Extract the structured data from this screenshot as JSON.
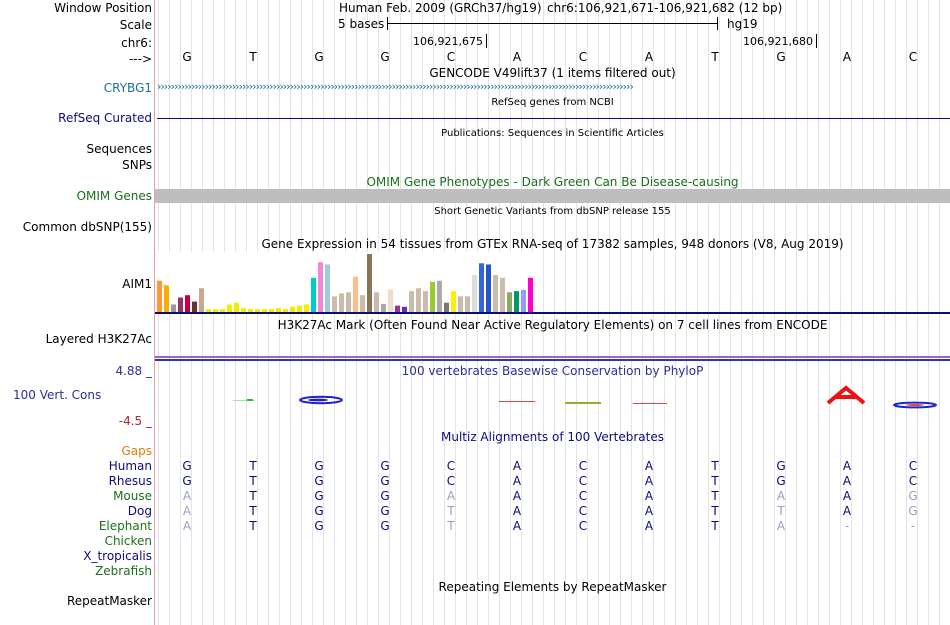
{
  "header": {
    "labels": {
      "window_position": "Window Position",
      "scale": "Scale",
      "chrom": "chr6:",
      "arrow": "--->"
    },
    "assembly": "Human Feb. 2009 (GRCh37/hg19)",
    "position": "chr6:106,921,671-106,921,682 (12 bp)",
    "scale_text": "5 bases",
    "scale_db": "hg19",
    "coord1": "106,921,675",
    "coord2": "106,921,680"
  },
  "bases": [
    "G",
    "T",
    "G",
    "G",
    "C",
    "A",
    "C",
    "A",
    "T",
    "G",
    "A",
    "C"
  ],
  "tracks": {
    "gencode": {
      "title": "GENCODE V49lift37 (1 items filtered out)",
      "label": "CRYBG1"
    },
    "refseq": {
      "title": "RefSeq genes from NCBI",
      "label": "RefSeq Curated"
    },
    "publications": {
      "title": "Publications: Sequences in Scientific Articles",
      "label1": "Sequences",
      "label2": "SNPs"
    },
    "omim": {
      "title": "OMIM Gene Phenotypes - Dark Green Can Be Disease-causing",
      "label": "OMIM Genes"
    },
    "dbsnp": {
      "title": "Short Genetic Variants from dbSNP release 155",
      "label": "Common dbSNP(155)"
    },
    "gtex": {
      "title": "Gene Expression in 54 tissues from GTEx RNA-seq of 17382 samples, 948 donors (V8, Aug 2019)",
      "label": "AIM1",
      "bars": [
        {
          "v": 0.54,
          "color": "#ff9933"
        },
        {
          "v": 0.46,
          "color": "#ffaa00"
        },
        {
          "v": 0.13,
          "color": "#999999"
        },
        {
          "v": 0.25,
          "color": "#993366"
        },
        {
          "v": 0.29,
          "color": "#cc0033"
        },
        {
          "v": 0.18,
          "color": "#663333"
        },
        {
          "v": 0.41,
          "color": "#c8a890"
        },
        {
          "v": 0.05,
          "color": "#eeee00"
        },
        {
          "v": 0.05,
          "color": "#eeee00"
        },
        {
          "v": 0.05,
          "color": "#eeee00"
        },
        {
          "v": 0.13,
          "color": "#eeee00"
        },
        {
          "v": 0.16,
          "color": "#eeee00"
        },
        {
          "v": 0.07,
          "color": "#eeee00"
        },
        {
          "v": 0.05,
          "color": "#eeee00"
        },
        {
          "v": 0.05,
          "color": "#eeee00"
        },
        {
          "v": 0.05,
          "color": "#eeee00"
        },
        {
          "v": 0.05,
          "color": "#eeee00"
        },
        {
          "v": 0.07,
          "color": "#eeee00"
        },
        {
          "v": 0.05,
          "color": "#eeee00"
        },
        {
          "v": 0.09,
          "color": "#eeee00"
        },
        {
          "v": 0.11,
          "color": "#eeee00"
        },
        {
          "v": 0.13,
          "color": "#eeee00"
        },
        {
          "v": 0.59,
          "color": "#00cccc"
        },
        {
          "v": 0.86,
          "color": "#ee88dd"
        },
        {
          "v": 0.82,
          "color": "#99ccdd"
        },
        {
          "v": 0.27,
          "color": "#ccbbaa"
        },
        {
          "v": 0.32,
          "color": "#ccbbaa"
        },
        {
          "v": 0.34,
          "color": "#ccbbaa"
        },
        {
          "v": 0.61,
          "color": "#ffbb88"
        },
        {
          "v": 0.29,
          "color": "#ccbbaa"
        },
        {
          "v": 1.0,
          "color": "#8b7355"
        },
        {
          "v": 0.34,
          "color": "#ccbbaa"
        },
        {
          "v": 0.14,
          "color": "#aaaaaa"
        },
        {
          "v": 0.39,
          "color": "#eeddcc"
        },
        {
          "v": 0.11,
          "color": "#993399"
        },
        {
          "v": 0.09,
          "color": "#6633aa"
        },
        {
          "v": 0.36,
          "color": "#ccbbaa"
        },
        {
          "v": 0.41,
          "color": "#ccbbaa"
        },
        {
          "v": 0.36,
          "color": "#ccbbaa"
        },
        {
          "v": 0.52,
          "color": "#99cc33"
        },
        {
          "v": 0.54,
          "color": "#aaaaaa"
        },
        {
          "v": 0.16,
          "color": "#777777"
        },
        {
          "v": 0.36,
          "color": "#ffee00"
        },
        {
          "v": 0.27,
          "color": "#ccbbaa"
        },
        {
          "v": 0.27,
          "color": "#ccbbaa"
        },
        {
          "v": 0.64,
          "color": "#dddddd"
        },
        {
          "v": 0.84,
          "color": "#3366dd"
        },
        {
          "v": 0.82,
          "color": "#2255cc"
        },
        {
          "v": 0.64,
          "color": "#ccbbaa"
        },
        {
          "v": 0.59,
          "color": "#ccbbaa"
        },
        {
          "v": 0.34,
          "color": "#88aa66"
        },
        {
          "v": 0.36,
          "color": "#009966"
        },
        {
          "v": 0.38,
          "color": "#9999ff"
        },
        {
          "v": 0.59,
          "color": "#ff00cc"
        }
      ]
    },
    "h3k27ac": {
      "title": "H3K27Ac Mark (Often Found Near Active Regulatory Elements) on 7 cell lines from ENCODE",
      "label": "Layered H3K27Ac"
    },
    "phylop": {
      "title": "100 vertebrates Basewise Conservation by PhyloP",
      "label": "100 Vert. Cons",
      "max": "4.88 _",
      "min": "-4.5 _"
    },
    "multiz": {
      "title": "Multiz Alignments of 100 Vertebrates",
      "gaps_label": "Gaps",
      "species": [
        {
          "name": "Human",
          "seq": [
            "G",
            "T",
            "G",
            "G",
            "C",
            "A",
            "C",
            "A",
            "T",
            "G",
            "A",
            "C"
          ],
          "dim": [
            0,
            0,
            0,
            0,
            0,
            0,
            0,
            0,
            0,
            0,
            0,
            0
          ]
        },
        {
          "name": "Rhesus",
          "seq": [
            "G",
            "T",
            "G",
            "G",
            "C",
            "A",
            "C",
            "A",
            "T",
            "G",
            "A",
            "C"
          ],
          "dim": [
            0,
            0,
            0,
            0,
            0,
            0,
            0,
            0,
            0,
            0,
            0,
            0
          ]
        },
        {
          "name": "Mouse",
          "seq": [
            "A",
            "T",
            "G",
            "G",
            "A",
            "A",
            "C",
            "A",
            "T",
            "A",
            "A",
            "G"
          ],
          "dim": [
            1,
            0,
            0,
            0,
            1,
            0,
            0,
            0,
            0,
            1,
            0,
            1
          ]
        },
        {
          "name": "Dog",
          "seq": [
            "A",
            "T",
            "G",
            "G",
            "T",
            "A",
            "C",
            "A",
            "T",
            "T",
            "A",
            "G"
          ],
          "dim": [
            1,
            0,
            0,
            0,
            1,
            0,
            0,
            0,
            0,
            1,
            0,
            1
          ]
        },
        {
          "name": "Elephant",
          "seq": [
            "A",
            "T",
            "G",
            "G",
            "T",
            "A",
            "C",
            "A",
            "T",
            "A",
            "-",
            "-"
          ],
          "dim": [
            1,
            0,
            0,
            0,
            1,
            0,
            0,
            0,
            0,
            1,
            1,
            1
          ]
        },
        {
          "name": "Chicken",
          "seq": [],
          "dim": []
        },
        {
          "name": "X_tropicalis",
          "seq": [],
          "dim": []
        },
        {
          "name": "Zebrafish",
          "seq": [],
          "dim": []
        }
      ]
    },
    "repeatmasker": {
      "title": "Repeating Elements by RepeatMasker",
      "label": "RepeatMasker"
    }
  },
  "colors": {
    "gene_blue": "#1a6e9e",
    "navy": "#0c0c78",
    "omim_green": "#1b6e1b",
    "omim_bar": "#bebebe",
    "phylop_blue": "#2d2d9e",
    "phylop_red": "#9e2d2d",
    "gaps": "#e08000",
    "species_navy": "#0c0c78",
    "species_green": "#1b6e1b",
    "dim_base": "#9aa0c0",
    "h3k27ac": "#9966cc"
  }
}
